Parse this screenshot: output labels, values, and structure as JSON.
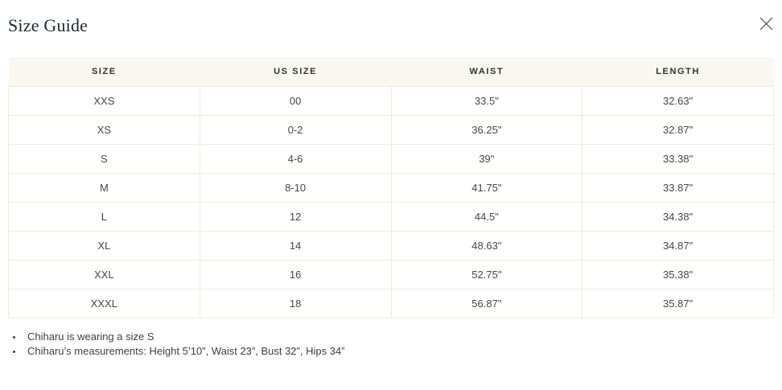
{
  "modal": {
    "title": "Size Guide"
  },
  "icons": {
    "close": "close-x"
  },
  "table": {
    "headers": [
      "SIZE",
      "US SIZE",
      "WAIST",
      "LENGTH"
    ],
    "rows": [
      [
        "XXS",
        "00",
        "33.5\"",
        "32.63\""
      ],
      [
        "XS",
        "0-2",
        "36.25\"",
        "32.87\""
      ],
      [
        "S",
        "4-6",
        "39\"",
        "33.38\""
      ],
      [
        "M",
        "8-10",
        "41.75\"",
        "33.87\""
      ],
      [
        "L",
        "12",
        "44.5\"",
        "34.38\""
      ],
      [
        "XL",
        "14",
        "48.63\"",
        "34.87\""
      ],
      [
        "XXL",
        "16",
        "52.75\"",
        "35.38\""
      ],
      [
        "XXXL",
        "18",
        "56.87\"",
        "35.87\""
      ]
    ]
  },
  "notes": [
    "Chiharu is wearing a size S",
    "Chiharu’s measurements: Height 5’10”, Waist 23”, Bust 32”, Hips 34”"
  ],
  "colors": {
    "header_bg": "#f9f7f1",
    "border": "#efeade",
    "title_text": "#1d2733",
    "body_text": "#474747"
  }
}
